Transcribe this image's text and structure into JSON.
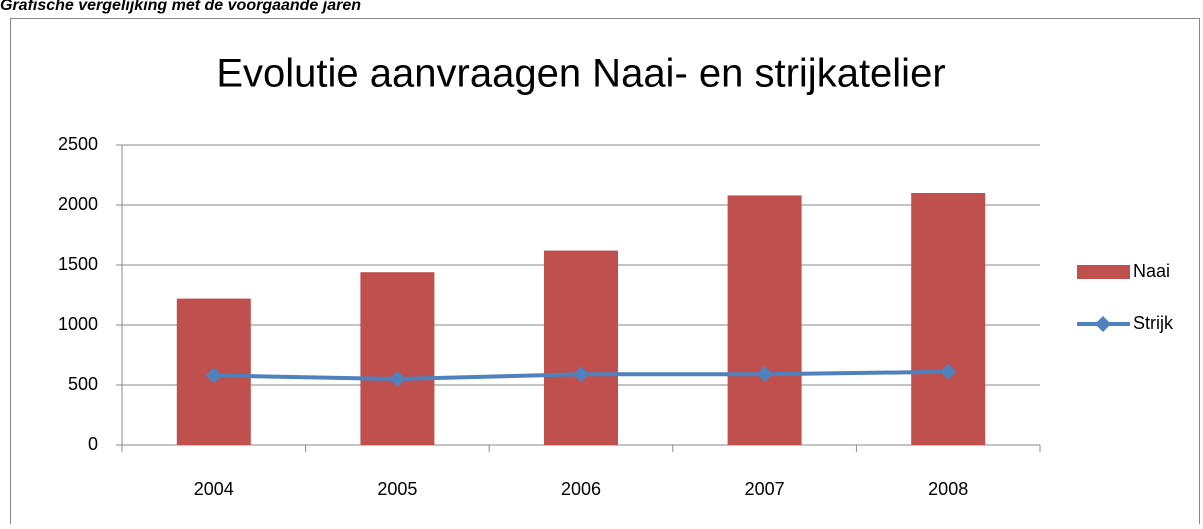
{
  "heading": "Grafische vergelijking met de voorgaande jaren",
  "chart_data": {
    "type": "bar",
    "title": "Evolutie aanvraagen Naai- en strijkatelier",
    "categories": [
      "2004",
      "2005",
      "2006",
      "2007",
      "2008"
    ],
    "series": [
      {
        "name": "Naai",
        "type": "bar",
        "color": "#c0504d",
        "values": [
          1220,
          1440,
          1620,
          2080,
          2100
        ]
      },
      {
        "name": "Strijk",
        "type": "line",
        "color": "#4f81bd",
        "values": [
          580,
          550,
          590,
          590,
          610
        ]
      }
    ],
    "ylim": [
      0,
      2500
    ],
    "yticks": [
      0,
      500,
      1000,
      1500,
      2000,
      2500
    ],
    "grid": true,
    "legend": "right"
  }
}
